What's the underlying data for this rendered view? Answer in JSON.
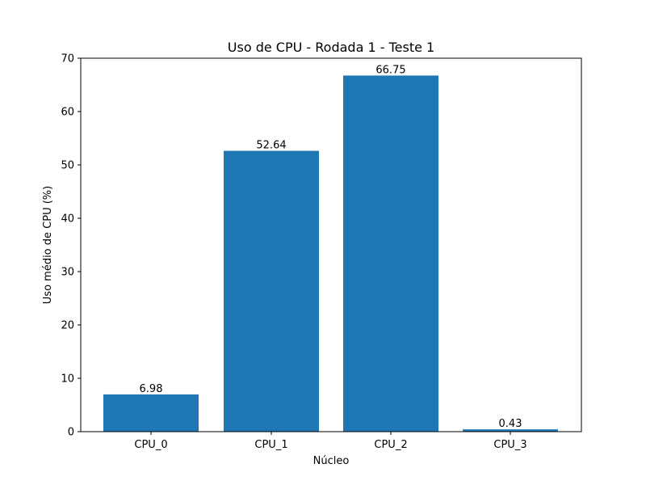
{
  "chart_data": {
    "type": "bar",
    "title": "Uso de CPU - Rodada 1 - Teste 1",
    "xlabel": "Núcleo",
    "ylabel": "Uso médio de CPU (%)",
    "categories": [
      "CPU_0",
      "CPU_1",
      "CPU_2",
      "CPU_3"
    ],
    "values": [
      6.98,
      52.64,
      66.75,
      0.43
    ],
    "value_labels": [
      "6.98",
      "52.64",
      "66.75",
      "0.43"
    ],
    "ylim": [
      0,
      70
    ],
    "yticks": [
      "0",
      "10",
      "20",
      "30",
      "40",
      "50",
      "60",
      "70"
    ],
    "grid": false,
    "bar_color": "#1f77b4"
  }
}
